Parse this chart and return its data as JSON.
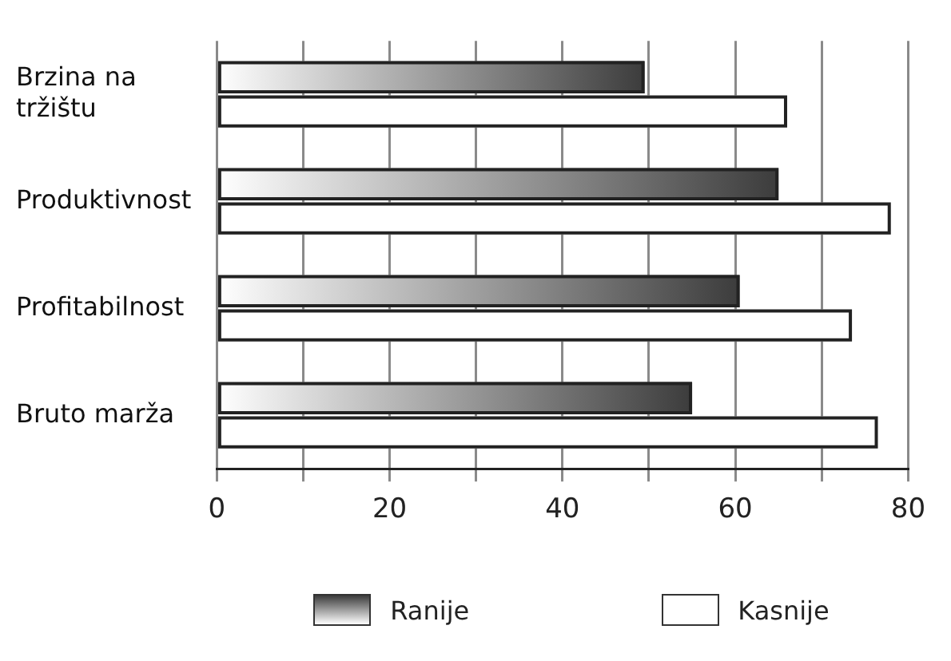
{
  "chart_data": {
    "type": "bar",
    "orientation": "horizontal",
    "categories": [
      "Brzina na tržištu",
      "Produktivnost",
      "Profitabilnost",
      "Bruto marža"
    ],
    "series": [
      {
        "name": "Ranije",
        "color": "#3c3c3c",
        "values": [
          49.5,
          65,
          60.5,
          55
        ]
      },
      {
        "name": "Kasnije",
        "color": "#ffffff",
        "values": [
          66,
          78,
          73.5,
          76.5
        ]
      }
    ],
    "xlim": [
      0,
      80
    ],
    "xticks": [
      0,
      {
        "value": 10,
        "label": null
      },
      20,
      {
        "value": 30,
        "label": null
      },
      40,
      {
        "value": 50,
        "label": null
      },
      60,
      {
        "value": 70,
        "label": null
      },
      80
    ],
    "grid": "x",
    "legend": "bottom"
  }
}
